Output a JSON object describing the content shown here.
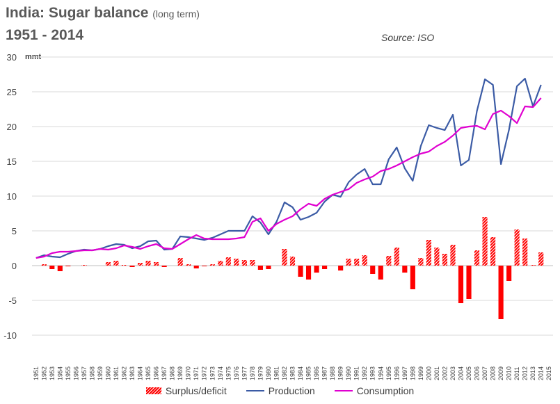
{
  "title": "India: Sugar balance",
  "title_note": "(long term)",
  "subtitle": "1951 - 2014",
  "source": "Source: ISO",
  "colors": {
    "production": "#3b5ba5",
    "consumption": "#e000d0",
    "surplus": "#ff0000",
    "grid": "#d9d9d9",
    "axis_text": "#404040"
  },
  "chart_data": {
    "type": "bar+line",
    "ylabel": "mmt",
    "ylim": [
      -10,
      30
    ],
    "yticks": [
      -10,
      -5,
      0,
      5,
      10,
      15,
      20,
      25,
      30
    ],
    "grid": "horizontal",
    "legend_position": "bottom",
    "categories": [
      1951,
      1952,
      1953,
      1954,
      1955,
      1956,
      1957,
      1958,
      1959,
      1960,
      1961,
      1962,
      1963,
      1964,
      1965,
      1966,
      1967,
      1968,
      1969,
      1970,
      1971,
      1972,
      1973,
      1974,
      1975,
      1976,
      1977,
      1978,
      1979,
      1980,
      1981,
      1982,
      1983,
      1984,
      1985,
      1986,
      1987,
      1988,
      1989,
      1990,
      1991,
      1992,
      1993,
      1994,
      1995,
      1996,
      1997,
      1998,
      1999,
      2000,
      2001,
      2002,
      2003,
      2004,
      2005,
      2006,
      2007,
      2008,
      2009,
      2010,
      2011,
      2012,
      2013,
      2014,
      2015
    ],
    "series": [
      {
        "name": "Surplus/deficit",
        "kind": "bar",
        "values": [
          0.0,
          0.2,
          -0.5,
          -0.8,
          -0.1,
          0.0,
          0.1,
          0.0,
          0.0,
          0.5,
          0.7,
          0.1,
          -0.2,
          0.4,
          0.7,
          0.5,
          -0.2,
          0.0,
          1.1,
          0.2,
          -0.4,
          -0.1,
          0.2,
          0.7,
          1.2,
          1.0,
          0.8,
          0.8,
          -0.6,
          -0.5,
          0.0,
          2.4,
          1.3,
          -1.6,
          -2.0,
          -1.0,
          -0.5,
          0.0,
          -0.7,
          1.0,
          1.0,
          1.5,
          -1.2,
          -2.0,
          1.4,
          2.6,
          -1.0,
          -3.4,
          1.1,
          3.7,
          2.6,
          1.7,
          3.0,
          -5.4,
          -4.8,
          2.2,
          7.0,
          4.1,
          -7.7,
          -2.2,
          5.2,
          3.9,
          0.1,
          1.9,
          null
        ]
      },
      {
        "name": "Production",
        "kind": "line",
        "values": [
          1.1,
          1.5,
          1.3,
          1.2,
          1.7,
          2.1,
          2.3,
          2.2,
          2.4,
          2.8,
          3.1,
          3.0,
          2.5,
          2.8,
          3.5,
          3.6,
          2.3,
          2.4,
          4.2,
          4.1,
          3.9,
          3.7,
          4.0,
          4.5,
          5.0,
          5.0,
          5.0,
          7.1,
          6.2,
          4.5,
          6.3,
          9.1,
          8.4,
          6.6,
          7.0,
          7.6,
          9.2,
          10.2,
          9.9,
          12.0,
          13.1,
          13.9,
          11.7,
          11.7,
          15.3,
          17.0,
          14.0,
          12.2,
          17.2,
          20.2,
          19.8,
          19.5,
          21.7,
          14.4,
          15.2,
          22.2,
          26.8,
          26.0,
          14.6,
          19.5,
          25.8,
          26.9,
          22.9,
          26.0,
          null
        ]
      },
      {
        "name": "Consumption",
        "kind": "line",
        "values": [
          1.1,
          1.3,
          1.8,
          2.0,
          2.0,
          2.1,
          2.2,
          2.2,
          2.4,
          2.3,
          2.5,
          2.9,
          2.7,
          2.4,
          2.8,
          3.1,
          2.5,
          2.4,
          3.1,
          3.8,
          4.4,
          3.9,
          3.8,
          3.8,
          3.8,
          3.9,
          4.1,
          6.3,
          6.8,
          5.0,
          6.0,
          6.6,
          7.1,
          8.1,
          8.9,
          8.6,
          9.6,
          10.2,
          10.6,
          11.0,
          11.9,
          12.4,
          12.8,
          13.6,
          13.9,
          14.4,
          15.0,
          15.6,
          16.1,
          16.4,
          17.2,
          17.8,
          18.7,
          19.8,
          20.0,
          20.1,
          19.6,
          21.8,
          22.3,
          21.5,
          20.5,
          22.9,
          22.8,
          24.1,
          null
        ]
      }
    ]
  }
}
